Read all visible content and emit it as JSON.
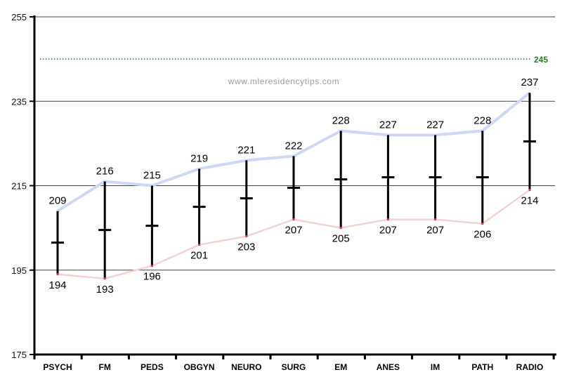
{
  "chart_data": {
    "type": "range",
    "categories": [
      "PSYCH",
      "FM",
      "PEDS",
      "OBGYN",
      "NEURO",
      "SURG",
      "EM",
      "ANES",
      "IM",
      "PATH",
      "RADIO"
    ],
    "series": [
      {
        "values": [
          209,
          216,
          215,
          219,
          221,
          222,
          228,
          227,
          227,
          228,
          237
        ]
      },
      {
        "values": [
          194,
          193,
          196,
          201,
          203,
          207,
          205,
          207,
          207,
          206,
          214
        ]
      },
      {
        "values": [
          201.5,
          204.5,
          205.5,
          210,
          212,
          214.5,
          216.5,
          217,
          217,
          217,
          225.5
        ]
      }
    ],
    "ylim": [
      175,
      255
    ],
    "yticks": [
      175,
      195,
      215,
      235,
      255
    ],
    "reference_line": {
      "value": 245,
      "label": "245",
      "color": "#2a7a2a"
    },
    "colors": {
      "high_line": "#cdd8f6",
      "low_line": "#f3d2d2",
      "bar": "#000000",
      "grid": "#444444"
    },
    "watermark": "www.mleresidencytips.com",
    "grid": true
  }
}
